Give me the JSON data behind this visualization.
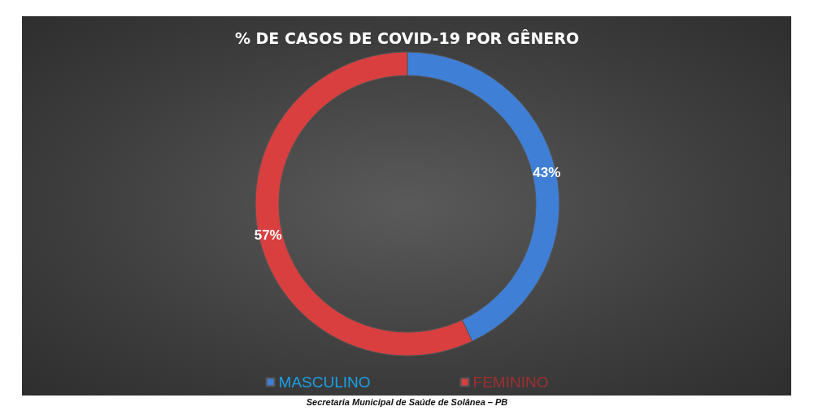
{
  "chart_data": {
    "type": "donut",
    "title": "% DE CASOS DE COVID-19 POR GÊNERO",
    "categories": [
      "MASCULINO",
      "FEMININO"
    ],
    "values": [
      43,
      57
    ],
    "value_labels": [
      "43%",
      "57%"
    ],
    "colors": [
      "#3f7fd6",
      "#d93f3f"
    ],
    "legend": "bottom",
    "annotations": [
      "Secretaria Municipal de Saúde de Solânea – PB"
    ]
  }
}
